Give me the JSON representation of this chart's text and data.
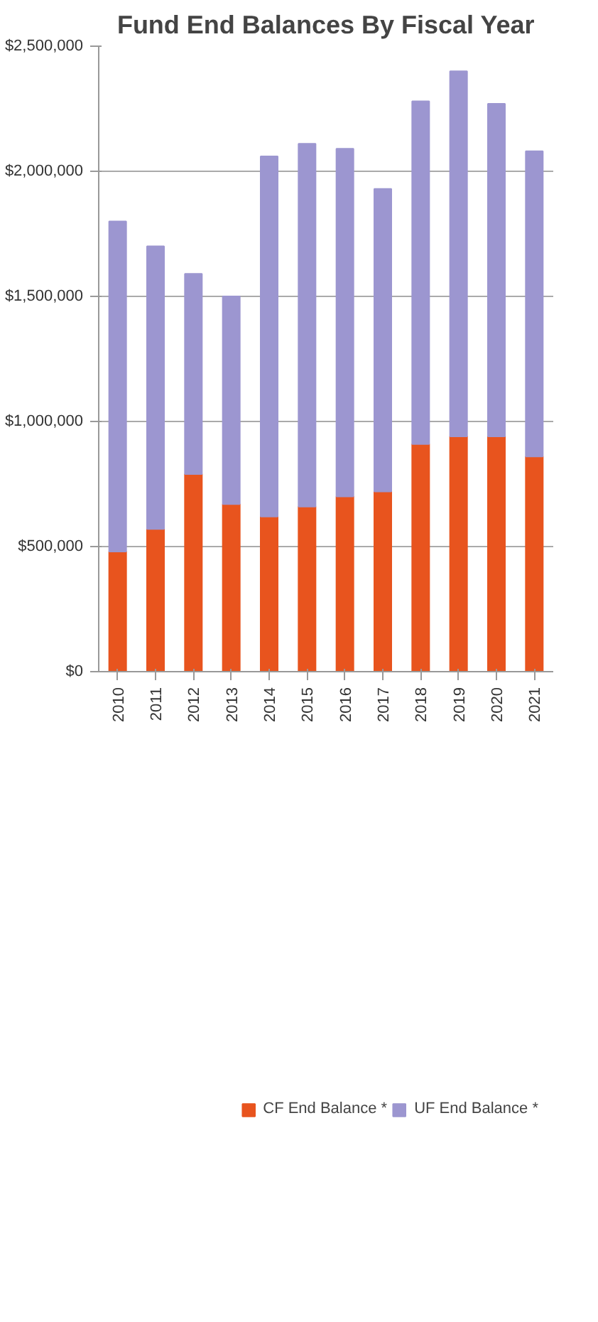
{
  "chart_data": {
    "type": "bar",
    "title": "Fund End Balances By Fiscal Year",
    "stacked": true,
    "categories": [
      "2010",
      "2011",
      "2012",
      "2013",
      "2014",
      "2015",
      "2016",
      "2017",
      "2018",
      "2019",
      "2020",
      "2021"
    ],
    "series": [
      {
        "name": "CF End Balance *",
        "color": "#e8541e",
        "values": [
          480000,
          570000,
          790000,
          670000,
          620000,
          660000,
          700000,
          720000,
          910000,
          940000,
          940000,
          860000
        ]
      },
      {
        "name": "UF End Balance *",
        "color": "#9c96d0",
        "values": [
          1320000,
          1130000,
          800000,
          830000,
          1440000,
          1450000,
          1390000,
          1210000,
          1370000,
          1460000,
          1330000,
          1220000
        ]
      }
    ],
    "ylim": [
      0,
      2500000
    ],
    "yticks": [
      {
        "value": 0,
        "label": "$0"
      },
      {
        "value": 500000,
        "label": "$500,000"
      },
      {
        "value": 1000000,
        "label": "$1,000,000"
      },
      {
        "value": 1500000,
        "label": "$1,500,000"
      },
      {
        "value": 2000000,
        "label": "$2,000,000"
      },
      {
        "value": 2500000,
        "label": "$2,500,000"
      }
    ],
    "grid": "y",
    "legend": "bottom"
  }
}
